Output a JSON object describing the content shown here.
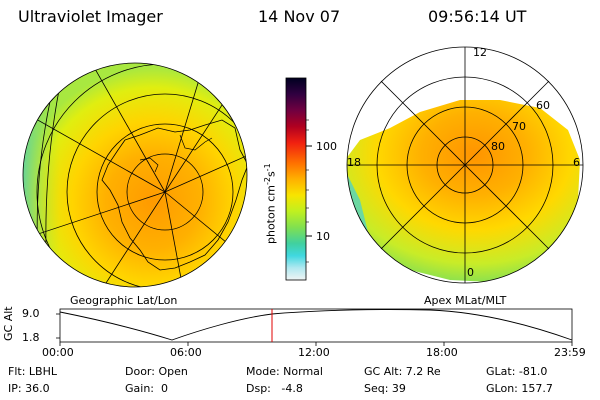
{
  "header": {
    "instrument": "Ultraviolet Imager",
    "date": "14 Nov 07",
    "time": "09:56:14 UT"
  },
  "colorbar": {
    "unit": "photon cm",
    "unit_exp1": "-2",
    "unit_mid": "s",
    "unit_exp2": "-1",
    "tick_100": "100",
    "tick_10": "10",
    "colors": [
      "#000020",
      "#200030",
      "#500040",
      "#8c0030",
      "#c40018",
      "#f02010",
      "#ff5a00",
      "#ff9a00",
      "#ffd000",
      "#f0f000",
      "#bef028",
      "#8ce650",
      "#50d070",
      "#30c0a0",
      "#40d0e0",
      "#a0e8f0",
      "#e8f4f4"
    ]
  },
  "left_panel": {
    "label": "Geographic Lat/Lon"
  },
  "right_panel": {
    "label": "Apex MLat/MLT",
    "lat_labels": [
      "60",
      "70",
      "80"
    ],
    "mlt_labels": {
      "top": "12",
      "left": "18",
      "right": "6",
      "bottom": "0"
    }
  },
  "timeline": {
    "axis_label": "GC Alt",
    "y_ticks": [
      "9.0",
      "1.8"
    ],
    "x_ticks": [
      "00:00",
      "06:00",
      "12:00",
      "18:00",
      "23:59"
    ],
    "marker_color": "#e00000"
  },
  "status": {
    "flt": "Flt: LBHL",
    "ip": "IP: 36.0",
    "door": "Door: Open",
    "gain": "Gain:  0",
    "mode": "Mode: Normal",
    "dsp": "Dsp:   -4.8",
    "gc_alt": "GC Alt: 7.2 Re",
    "seq": "Seq: 39",
    "glat": "GLat: -81.0",
    "glon": "GLon: 157.7"
  }
}
